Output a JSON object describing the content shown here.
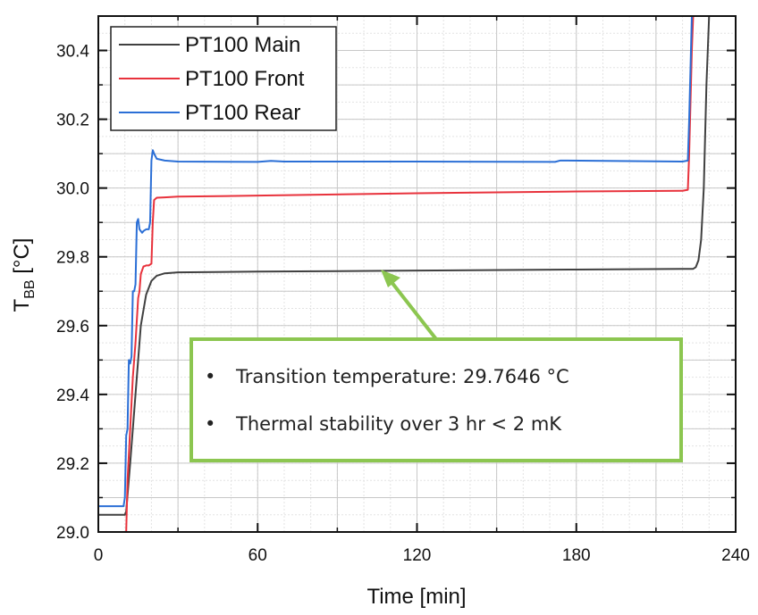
{
  "chart_data": {
    "type": "line",
    "xlabel": "Time [min]",
    "ylabel": "T",
    "ylabel_sub": "BB",
    "ylabel_unit": " [°C]",
    "xlim": [
      0,
      240
    ],
    "ylim": [
      29.0,
      30.5
    ],
    "xticks": [
      0,
      60,
      120,
      180,
      240
    ],
    "yticks": [
      29.0,
      29.2,
      29.4,
      29.6,
      29.8,
      30.0,
      30.2,
      30.4
    ],
    "legend_position": "top-left",
    "series": [
      {
        "name": "PT100 Main",
        "color": "#404040",
        "x": [
          0,
          10,
          10.5,
          12,
          14,
          16,
          18,
          20,
          22,
          25,
          30,
          60,
          120,
          180,
          222,
          224,
          225,
          226,
          227,
          228,
          229,
          230
        ],
        "y": [
          29.05,
          29.05,
          29.06,
          29.2,
          29.4,
          29.6,
          29.69,
          29.73,
          29.745,
          29.752,
          29.755,
          29.757,
          29.76,
          29.763,
          29.765,
          29.765,
          29.77,
          29.79,
          29.85,
          30.0,
          30.3,
          30.5
        ]
      },
      {
        "name": "PT100 Front",
        "color": "#e8323c",
        "x": [
          10.5,
          11,
          12,
          13,
          14,
          15,
          15.5,
          16,
          17,
          17.5,
          18,
          19,
          20,
          20.5,
          21,
          22,
          25,
          30,
          60,
          120,
          180,
          220,
          222,
          222.5,
          223,
          223.5,
          224,
          224.5
        ],
        "y": [
          29.0,
          29.15,
          29.3,
          29.45,
          29.55,
          29.68,
          29.7,
          29.75,
          29.772,
          29.773,
          29.775,
          29.775,
          29.78,
          29.9,
          29.965,
          29.972,
          29.973,
          29.975,
          29.978,
          29.985,
          29.99,
          29.992,
          29.995,
          30.1,
          30.25,
          30.4,
          30.5,
          30.5
        ]
      },
      {
        "name": "PT100 Rear",
        "color": "#2b6fd6",
        "x": [
          0,
          9.5,
          10,
          10.5,
          11,
          11.5,
          12,
          12.5,
          13,
          13.5,
          14,
          14.5,
          15,
          15.5,
          16,
          16.5,
          17,
          18,
          19,
          19.5,
          20,
          20.5,
          21,
          22,
          25,
          30,
          60,
          65,
          70,
          120,
          172,
          174,
          220,
          222,
          222.5,
          223,
          223.5,
          224
        ],
        "y": [
          29.075,
          29.075,
          29.1,
          29.28,
          29.3,
          29.5,
          29.49,
          29.51,
          29.7,
          29.7,
          29.72,
          29.9,
          29.91,
          29.88,
          29.875,
          29.87,
          29.875,
          29.88,
          29.88,
          29.9,
          30.08,
          30.11,
          30.1,
          30.085,
          30.08,
          30.077,
          30.076,
          30.079,
          30.077,
          30.077,
          30.076,
          30.08,
          30.077,
          30.08,
          30.2,
          30.35,
          30.5,
          30.5
        ]
      }
    ]
  },
  "annotation": {
    "bullets": [
      "Transition temperature: 29.7646 °C",
      "Thermal stability over 3 hr < 2 mK"
    ],
    "bullet_glyph": "•",
    "box_color": "#8cc650",
    "arrow_target": {
      "x": 106,
      "y": 29.765
    }
  }
}
